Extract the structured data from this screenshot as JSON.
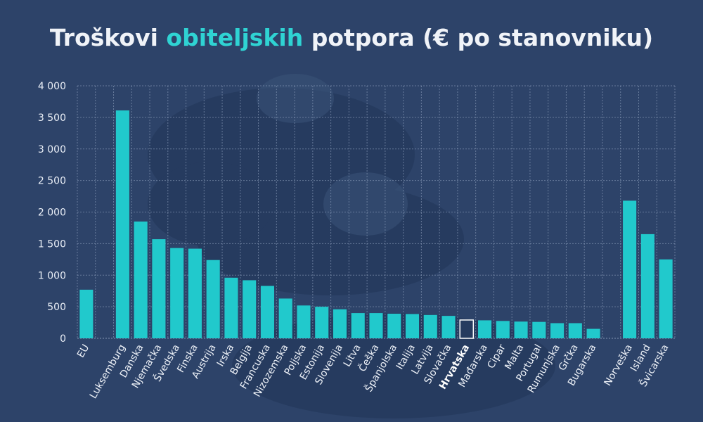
{
  "title": {
    "part1": "Troškovi ",
    "highlight": "obiteljskih",
    "part2": " potpora (€ po stanovniku)"
  },
  "colors": {
    "background": "#2d4369",
    "bar": "#21c9cc",
    "highlight_text": "#2fd3d3",
    "grid": "#8ea0bd"
  },
  "chart_data": {
    "type": "bar",
    "title": "Troškovi obiteljskih potpora (€ po stanovniku)",
    "xlabel": "",
    "ylabel": "",
    "ylim": [
      0,
      4000
    ],
    "yticks": [
      0,
      500,
      1000,
      1500,
      2000,
      2500,
      3000,
      3500,
      4000
    ],
    "ytick_labels": [
      "0",
      "500",
      "1 000",
      "1 500",
      "2 000",
      "2 500",
      "3 000",
      "3 500",
      "4 000"
    ],
    "grid": "vertical and horizontal",
    "highlighted_category": "Hrvatska",
    "categories": [
      "EU",
      "",
      "Luksemburg",
      "Danska",
      "Njemačka",
      "Švedska",
      "Finska",
      "Austrija",
      "Irska",
      "Belgija",
      "Francuska",
      "Nizozemska",
      "Poljska",
      "Estonija",
      "Slovenija",
      "Litva",
      "Češka",
      "Španjolska",
      "Italija",
      "Latvija",
      "Slovačka",
      "Hrvatska",
      "Mađarska",
      "Cipar",
      "Malta",
      "Portugal",
      "Rumunjska",
      "Grčka",
      "Bugarska",
      "",
      "Norveška",
      "Island",
      "Švicarska"
    ],
    "values": [
      770,
      null,
      3610,
      1850,
      1570,
      1430,
      1420,
      1240,
      960,
      920,
      830,
      630,
      520,
      500,
      460,
      400,
      400,
      390,
      385,
      370,
      355,
      290,
      285,
      275,
      265,
      260,
      240,
      240,
      150,
      null,
      2180,
      1650,
      1250
    ]
  }
}
